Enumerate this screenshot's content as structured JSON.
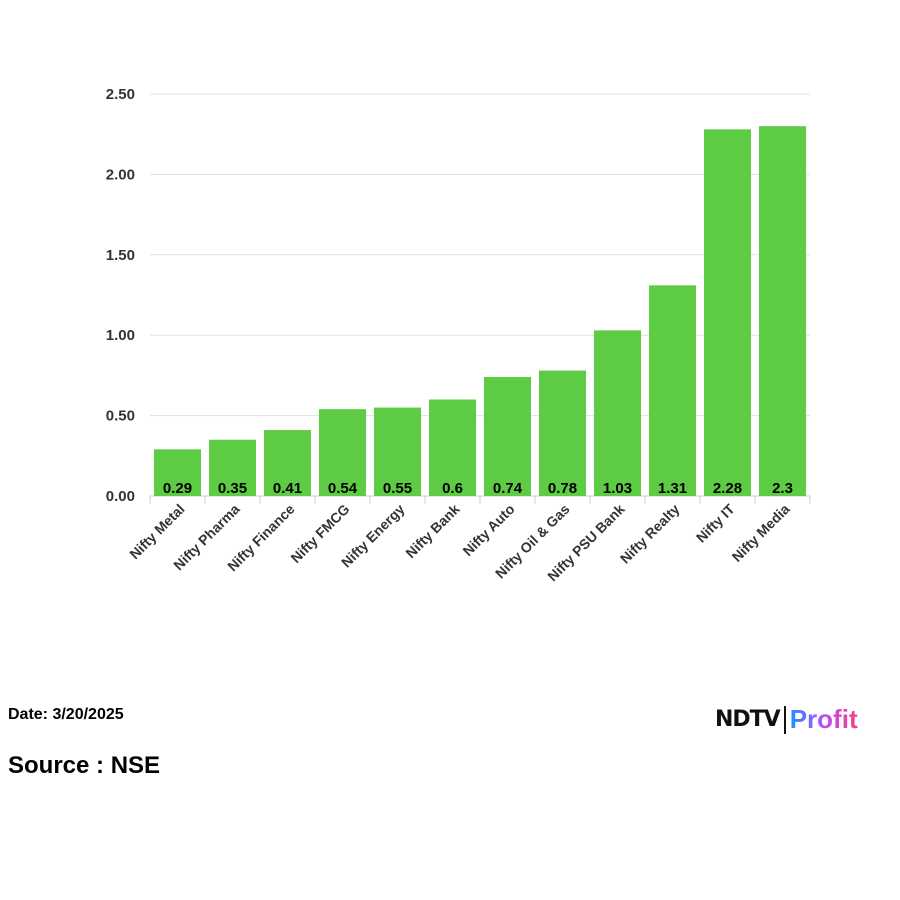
{
  "chart_data": {
    "type": "bar",
    "categories": [
      "Nifty Metal",
      "Nifty Pharma",
      "Nifty Finance",
      "Nifty FMCG",
      "Nifty Energy",
      "Nifty Bank",
      "Nifty Auto",
      "Nifty Oil & Gas",
      "Nifty PSU Bank",
      "Nifty Realty",
      "Nifty IT",
      "Nifty Media"
    ],
    "values": [
      0.29,
      0.35,
      0.41,
      0.54,
      0.55,
      0.6,
      0.74,
      0.78,
      1.03,
      1.31,
      2.28,
      2.3
    ],
    "data_labels": [
      "0.29",
      "0.35",
      "0.41",
      "0.54",
      "0.55",
      "0.6",
      "0.74",
      "0.78",
      "1.03",
      "1.31",
      "2.28",
      "2.3"
    ],
    "yticks": [
      "0.00",
      "0.50",
      "1.00",
      "1.50",
      "2.00",
      "2.50"
    ],
    "ylim": [
      0,
      2.5
    ],
    "grid": true,
    "bar_color": "#5ecb45",
    "title": "",
    "xlabel": "",
    "ylabel": ""
  },
  "footer": {
    "date": "Date: 3/20/2025",
    "source": "Source : NSE"
  },
  "logo": {
    "brand": "NDTV",
    "product": "Profit"
  }
}
